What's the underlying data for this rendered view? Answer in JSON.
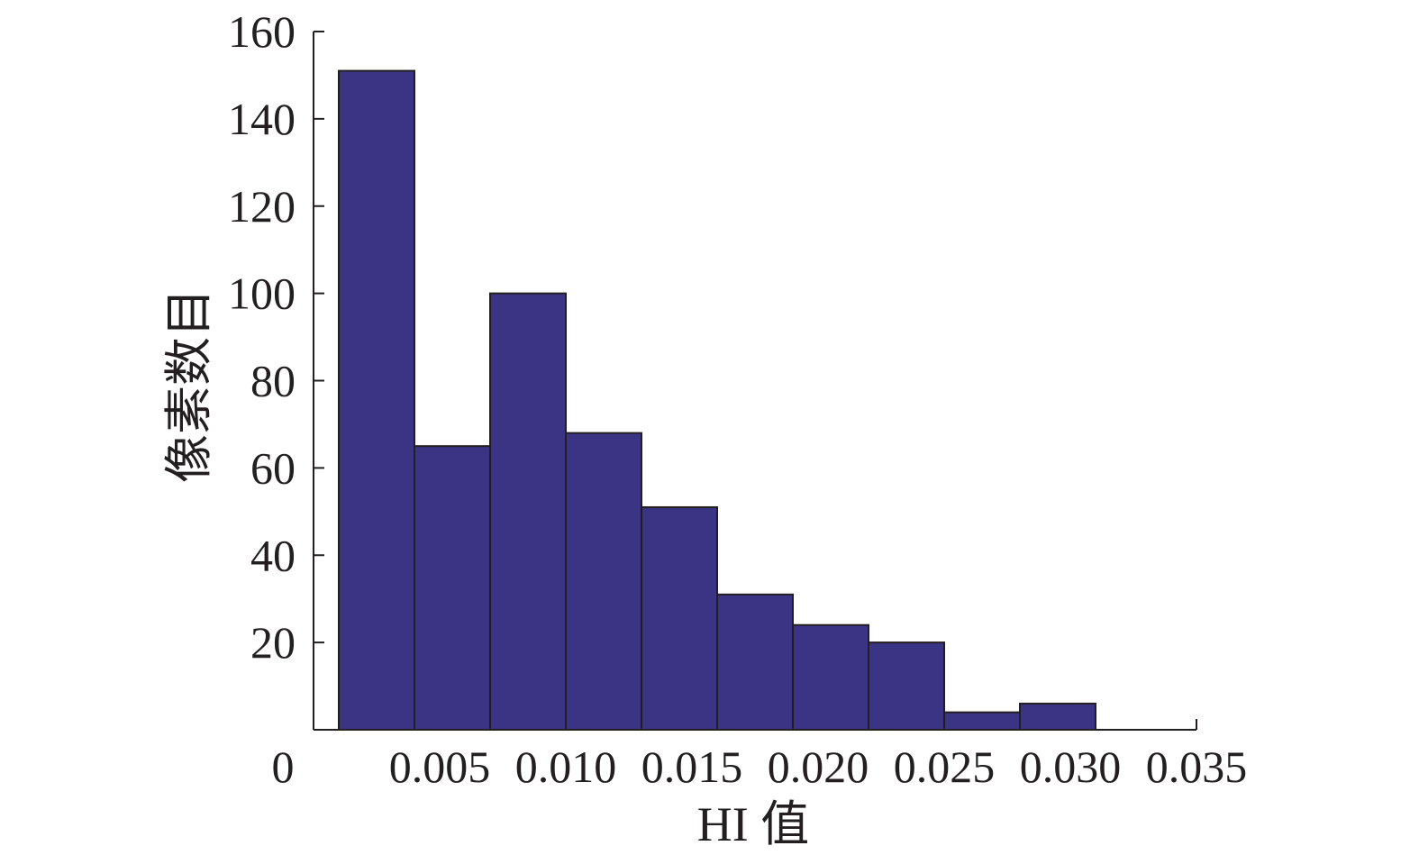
{
  "chart_data": {
    "type": "bar",
    "title": "",
    "xlabel": "HI 值",
    "ylabel": "像素数目",
    "bin_edges": [
      0.001,
      0.004,
      0.007,
      0.01,
      0.013,
      0.016,
      0.019,
      0.022,
      0.025,
      0.028,
      0.031
    ],
    "values": [
      151,
      65,
      100,
      68,
      51,
      31,
      24,
      20,
      4,
      6
    ],
    "xlim": [
      0,
      0.035
    ],
    "ylim": [
      0,
      160
    ],
    "x_ticks": [
      0.005,
      0.01,
      0.015,
      0.02,
      0.025,
      0.03,
      0.035
    ],
    "x_tick_labels": [
      "0.005",
      "0.010",
      "0.015",
      "0.020",
      "0.025",
      "0.030",
      "0.035"
    ],
    "y_ticks": [
      20,
      40,
      60,
      80,
      100,
      120,
      140,
      160
    ],
    "y_tick_labels": [
      "20",
      "40",
      "60",
      "80",
      "100",
      "120",
      "140",
      "160"
    ],
    "origin_label": "0",
    "bar_color": "#3b3484",
    "bar_edge_color": "#231f20",
    "grid": false
  }
}
